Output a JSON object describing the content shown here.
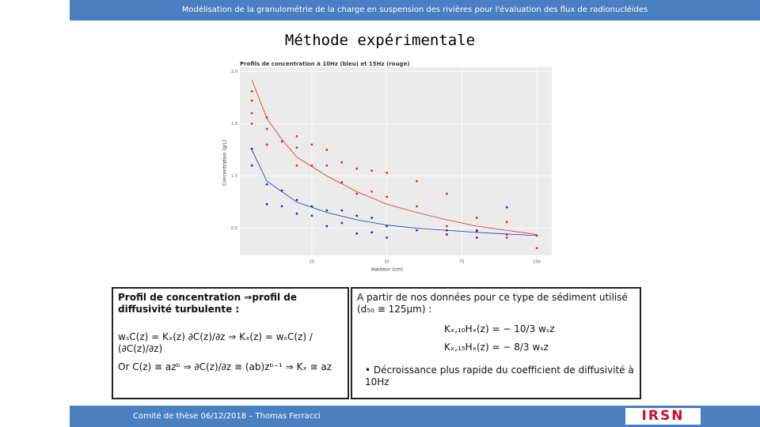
{
  "header": {
    "text": "Modélisation de la granulométrie de la charge en suspension des rivières pour l'évaluation des flux de radionucléides"
  },
  "title": "Méthode expérimentale",
  "chart_data": {
    "type": "scatter",
    "title": "Profils de concentration à 10Hz (bleu) et 15Hz (rouge)",
    "x_label": "Hauteur (cm)",
    "y_label": "Concentration (g/L)",
    "xlim": [
      1,
      105
    ],
    "ylim": [
      0.24,
      2.04
    ],
    "xticks": [
      25,
      50,
      75,
      100
    ],
    "yticks": [
      {
        "value": 0.5,
        "label": "0.5"
      },
      {
        "value": 1,
        "label": "1.0"
      },
      {
        "value": 1.5,
        "label": "1.5"
      },
      {
        "value": 2,
        "label": "2.0"
      }
    ],
    "grid": true,
    "series": [
      {
        "color": "#e8262b",
        "x": [
          5,
          5,
          5,
          5,
          10,
          10,
          10,
          15,
          20,
          20,
          20,
          25,
          25,
          30,
          30,
          35,
          35,
          40,
          40,
          45,
          45,
          50,
          50,
          60,
          60,
          70,
          70,
          80,
          80,
          90,
          90,
          100,
          100
        ],
        "values": [
          1.81,
          1.72,
          1.6,
          1.5,
          1.56,
          1.45,
          1.3,
          1.33,
          1.38,
          1.27,
          1.1,
          1.3,
          1.1,
          1.25,
          1.1,
          1.13,
          0.94,
          1.07,
          0.83,
          1.05,
          0.85,
          1.03,
          0.8,
          0.95,
          0.71,
          0.83,
          0.52,
          0.6,
          0.47,
          0.56,
          0.41,
          0.43,
          0.31
        ]
      },
      {
        "color": "#1f2fb4",
        "x": [
          5,
          5,
          10,
          10,
          15,
          15,
          20,
          20,
          25,
          25,
          30,
          30,
          35,
          35,
          40,
          40,
          45,
          45,
          50,
          50,
          60,
          70,
          70,
          80,
          80,
          90,
          90
        ],
        "values": [
          1.26,
          1.1,
          0.92,
          0.73,
          0.86,
          0.71,
          0.77,
          0.64,
          0.71,
          0.62,
          0.67,
          0.52,
          0.67,
          0.55,
          0.62,
          0.45,
          0.6,
          0.46,
          0.52,
          0.41,
          0.48,
          0.48,
          0.44,
          0.48,
          0.41,
          0.7,
          0.44
        ]
      }
    ],
    "lines": [
      {
        "color": "#e8262b",
        "x": [
          5,
          10,
          15,
          20,
          30,
          40,
          50,
          60,
          70,
          80,
          90,
          100
        ],
        "values": [
          1.92,
          1.55,
          1.35,
          1.18,
          1.0,
          0.85,
          0.73,
          0.65,
          0.58,
          0.52,
          0.48,
          0.44
        ]
      },
      {
        "color": "#1f2fb4",
        "x": [
          5,
          10,
          20,
          30,
          40,
          50,
          60,
          80,
          100
        ],
        "values": [
          1.25,
          0.95,
          0.75,
          0.65,
          0.58,
          0.53,
          0.5,
          0.46,
          0.43
        ]
      }
    ]
  },
  "left_box": {
    "heading": "Profil de concentration ⇒profil de diffusivité turbulente :",
    "eq1": "wₛC(z) = Kₓ(z) ∂C(z)/∂z ⇒ Kₓ(z) = wₛC(z) / (∂C(z)/∂z)",
    "eq2": "Or C(z) ≅ azᵇ ⇒ ∂C(z)/∂z ≅ (ab)zᵇ⁻¹ ⇒ Kₓ ≅ az"
  },
  "right_box": {
    "heading": "A partir de nos données pour ce type de sédiment utilisé (d₅₀ ≅ 125μm) :",
    "eq1": "Kₓ,₁₀Hₓ(z) = − 10/3 wₛz",
    "eq2": "Kₓ,₁₅Hₓ(z) = − 8/3 wₛz",
    "bullet": "Décroissance plus rapide du coefficient de diffusivité à 10Hz"
  },
  "footer": {
    "text": "Comité de thèse 06/12/2018 – Thomas Ferracci",
    "logo": "IRSN"
  }
}
